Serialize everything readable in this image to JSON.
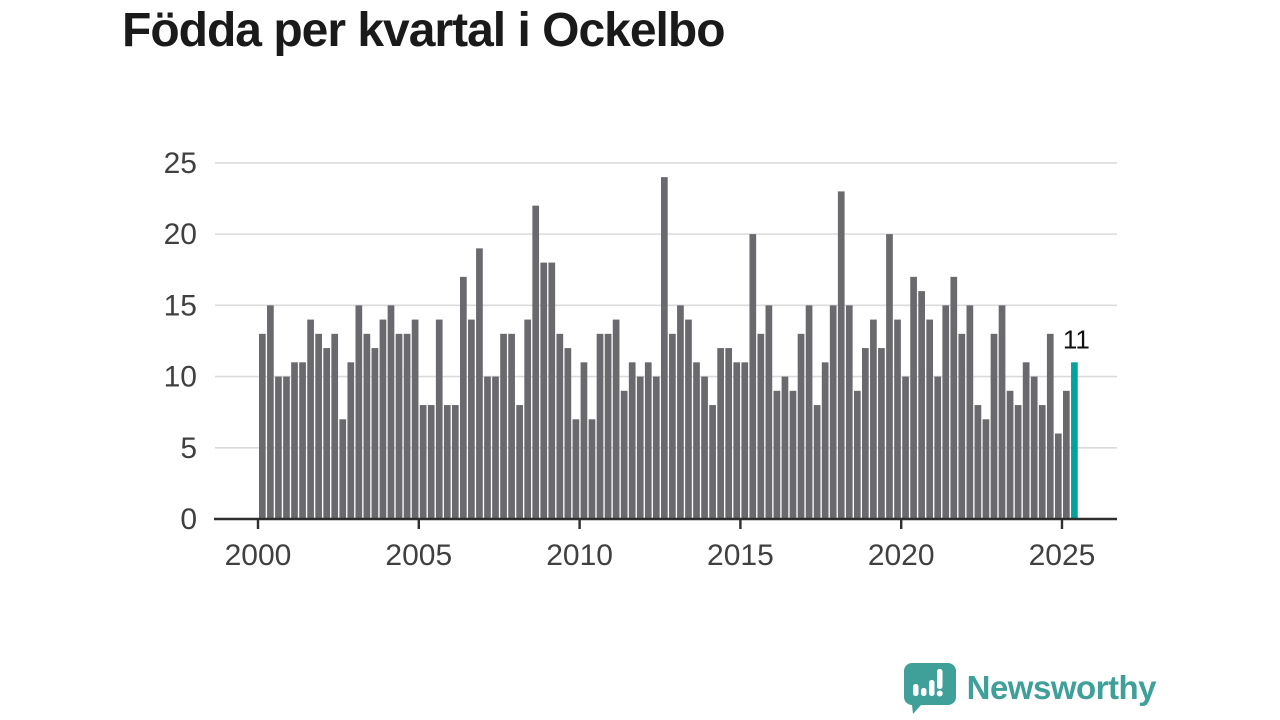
{
  "title": "Födda per kvartal i Ockelbo",
  "chart_data": {
    "type": "bar",
    "title": "Födda per kvartal i Ockelbo",
    "x_start": "2000-Q1",
    "x_end": "2025-Q2",
    "periodicity": "quarterly",
    "values": [
      13,
      15,
      10,
      10,
      11,
      11,
      14,
      13,
      12,
      13,
      7,
      11,
      15,
      13,
      12,
      14,
      15,
      13,
      13,
      14,
      8,
      8,
      14,
      8,
      8,
      17,
      14,
      19,
      10,
      10,
      13,
      13,
      8,
      14,
      22,
      18,
      18,
      13,
      12,
      7,
      11,
      7,
      13,
      13,
      14,
      9,
      11,
      10,
      11,
      10,
      24,
      13,
      15,
      14,
      11,
      10,
      8,
      12,
      12,
      11,
      11,
      20,
      13,
      15,
      9,
      10,
      9,
      13,
      15,
      8,
      11,
      15,
      23,
      15,
      9,
      12,
      14,
      12,
      20,
      14,
      10,
      17,
      16,
      14,
      10,
      15,
      17,
      13,
      15,
      8,
      7,
      13,
      15,
      9,
      8,
      11,
      10,
      8,
      13,
      6,
      9,
      11
    ],
    "highlight": {
      "index": 101,
      "value": 11,
      "label": "11"
    },
    "ylim": [
      0,
      25
    ],
    "yticks": [
      0,
      5,
      10,
      15,
      20,
      25
    ],
    "xticks": [
      2000,
      2005,
      2010,
      2015,
      2020,
      2025
    ],
    "grid": true,
    "legend": "none",
    "colors": {
      "bar": "#6a6a6e",
      "highlight": "#00a49c",
      "gridline": "#dbdbdb",
      "axis": "#2e2e2e",
      "tick_label": "#404040",
      "annotation": "#111111"
    }
  },
  "logo": {
    "text": "Newsworthy",
    "color": "#3fa099",
    "icon": "speech-bubble-bar-chart-icon"
  }
}
